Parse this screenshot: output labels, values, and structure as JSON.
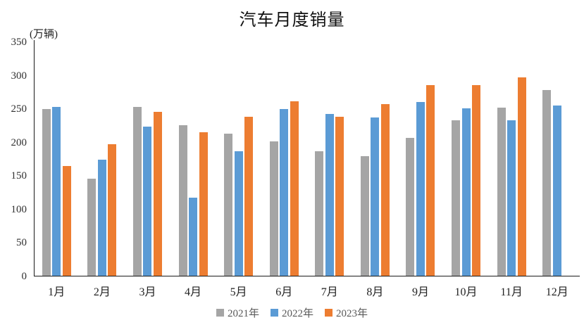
{
  "chart_data": {
    "type": "bar",
    "title": "汽车月度销量",
    "unit_label": "(万辆)",
    "xlabel": "",
    "ylabel": "万辆",
    "categories": [
      "1月",
      "2月",
      "3月",
      "4月",
      "5月",
      "6月",
      "7月",
      "8月",
      "9月",
      "10月",
      "11月",
      "12月"
    ],
    "series": [
      {
        "name": "2021年",
        "color": "#A5A5A5",
        "values": [
          250,
          146,
          253,
          226,
          213,
          202,
          187,
          180,
          207,
          233,
          252,
          279
        ]
      },
      {
        "name": "2022年",
        "color": "#5B9BD5",
        "values": [
          253,
          174,
          224,
          118,
          187,
          250,
          243,
          238,
          261,
          251,
          233,
          255
        ]
      },
      {
        "name": "2023年",
        "color": "#ED7D31",
        "values": [
          165,
          198,
          246,
          216,
          239,
          262,
          239,
          258,
          286,
          286,
          297,
          null
        ]
      }
    ],
    "ylim": [
      0,
      350
    ],
    "y_ticks": [
      0,
      50,
      100,
      150,
      200,
      250,
      300,
      350
    ],
    "grid": false,
    "legend_position": "bottom"
  },
  "colors": {
    "axis": "#1a1a1a",
    "tick_text": "#303030",
    "legend_text": "#595959",
    "background": "#ffffff"
  }
}
